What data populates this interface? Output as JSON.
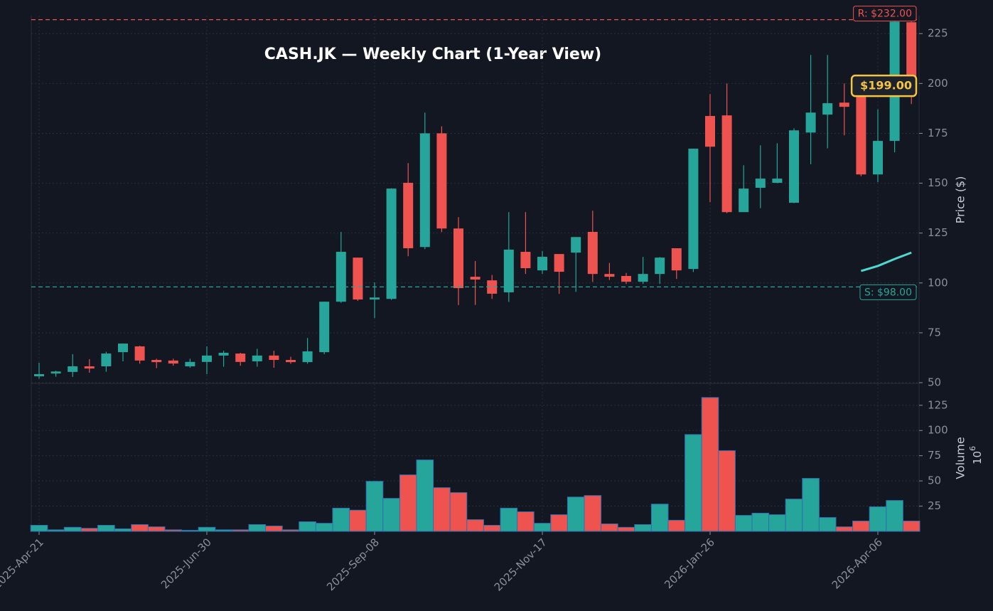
{
  "chart_data": [
    {
      "type": "candlestick",
      "title": "CASH.JK — Weekly Chart (1-Year View)",
      "y_label": "Price ($)",
      "categories": [
        "2025-Apr-21",
        null,
        null,
        null,
        null,
        null,
        null,
        null,
        null,
        null,
        "2025-Jun-30",
        null,
        null,
        null,
        null,
        null,
        null,
        null,
        null,
        null,
        "2025-Sep-08",
        null,
        null,
        null,
        null,
        null,
        null,
        null,
        null,
        null,
        "2025-Nov-17",
        null,
        null,
        null,
        null,
        null,
        null,
        null,
        null,
        null,
        "2026-Jan-26",
        null,
        null,
        null,
        null,
        null,
        null,
        null,
        null,
        null,
        "2026-Apr-06",
        null,
        null
      ],
      "open": [
        53.2,
        54.6,
        55.4,
        58.2,
        58.2,
        65.3,
        68.2,
        61.4,
        61.1,
        58.2,
        60.4,
        63.6,
        64.6,
        60.7,
        63.6,
        61.4,
        60.3,
        65.3,
        90.6,
        112.7,
        91.7,
        92,
        150.2,
        118,
        175,
        127.3,
        103.1,
        101.3,
        95.3,
        115.6,
        106.3,
        114.5,
        115.2,
        125.6,
        104.5,
        103.5,
        100.6,
        104.5,
        117.4,
        107,
        183.7,
        184,
        135.5,
        147.7,
        150.2,
        140.2,
        175.4,
        184.4,
        190.4,
        193.6,
        154.4,
        171.2,
        230.7
      ],
      "high": [
        60,
        56,
        64.3,
        61.8,
        65.5,
        69.6,
        68.5,
        62,
        62,
        62,
        68.2,
        66,
        65,
        67,
        66,
        63,
        72.4,
        90.6,
        125.6,
        112.7,
        100.3,
        147.5,
        160.1,
        185.4,
        178.5,
        133,
        111,
        104,
        135.5,
        135.5,
        116,
        114.5,
        123,
        136.2,
        110,
        105,
        113,
        113,
        117.4,
        167.3,
        194.7,
        200,
        159,
        169,
        170,
        177.5,
        214.3,
        214.3,
        200,
        197,
        187,
        232,
        231
      ],
      "low": [
        52,
        53,
        52.9,
        55,
        55.5,
        60.7,
        59.5,
        57.3,
        58.5,
        57.5,
        54.3,
        58,
        58.5,
        58,
        57.5,
        59.5,
        59.5,
        64.3,
        90,
        91,
        82.4,
        91.5,
        113.4,
        117,
        125.5,
        88.9,
        89,
        92,
        90.5,
        104.5,
        104.5,
        94.5,
        95.5,
        100.5,
        101.5,
        99.5,
        99.5,
        99.5,
        102,
        105.5,
        140.5,
        135,
        137,
        137.5,
        150,
        140,
        159.5,
        167.5,
        174,
        153.5,
        150.5,
        165.5,
        189.7
      ],
      "close": [
        54.3,
        55.6,
        58.2,
        57.1,
        64.6,
        69.6,
        61.1,
        60.3,
        59.6,
        60.4,
        63.6,
        65,
        60.4,
        63.6,
        61.4,
        60.3,
        65.7,
        90.6,
        115.6,
        91.7,
        92.7,
        147.3,
        117.4,
        175,
        127.3,
        97.4,
        101.7,
        94.6,
        116.7,
        107.4,
        113.1,
        105.6,
        123,
        104.5,
        103.1,
        100.6,
        104.5,
        112.7,
        106.3,
        167.3,
        168.3,
        135.5,
        147.3,
        152.3,
        152.3,
        176.5,
        185.4,
        190.1,
        188.3,
        154.4,
        171.2,
        231,
        199
      ],
      "up_color": "#26a69a",
      "down_color": "#ef5350",
      "lines": [
        {
          "color": "#4dd9d0",
          "values": [
            null,
            null,
            null,
            null,
            null,
            null,
            null,
            null,
            null,
            null,
            null,
            null,
            null,
            null,
            null,
            null,
            null,
            null,
            null,
            null,
            null,
            null,
            null,
            null,
            null,
            null,
            null,
            null,
            null,
            null,
            null,
            null,
            null,
            null,
            null,
            null,
            null,
            null,
            null,
            null,
            null,
            null,
            null,
            null,
            null,
            null,
            null,
            null,
            null,
            106,
            108.5,
            112,
            115.2
          ]
        }
      ],
      "levels": [
        {
          "label": "R: $232.00",
          "value": 232,
          "color": "#ef5350"
        },
        {
          "label": "S: $98.00",
          "value": 98,
          "color": "#26a69a"
        }
      ],
      "last_price": {
        "label": "$199.00",
        "value": 199,
        "color": "#f5c542"
      },
      "ylim": [
        50,
        234
      ],
      "yticks": [
        50,
        75,
        100,
        125,
        150,
        175,
        200,
        225
      ],
      "grid": true
    },
    {
      "type": "bar",
      "y_label": "Volume",
      "scale_base": "10",
      "scale_exponent": "6",
      "values": [
        6,
        1.5,
        4,
        3,
        6,
        2.5,
        6.7,
        4.5,
        1.5,
        1,
        4,
        1.5,
        1.5,
        6.7,
        5.3,
        1.5,
        9.5,
        8,
        23,
        21,
        49.6,
        32.7,
        56,
        70.8,
        43.3,
        38.4,
        11.6,
        6,
        23,
        19.4,
        8,
        16.5,
        34,
        35.5,
        7.4,
        4,
        6.7,
        27,
        11,
        96,
        132.7,
        80,
        15.8,
        18,
        16.5,
        32,
        52.5,
        13.7,
        4.5,
        10.2,
        24.3,
        30.6,
        10.2
      ],
      "edge_color": "#2f6fb0",
      "ylim": [
        0,
        146
      ],
      "yticks": [
        25,
        50,
        75,
        100,
        125
      ],
      "grid": true
    }
  ]
}
